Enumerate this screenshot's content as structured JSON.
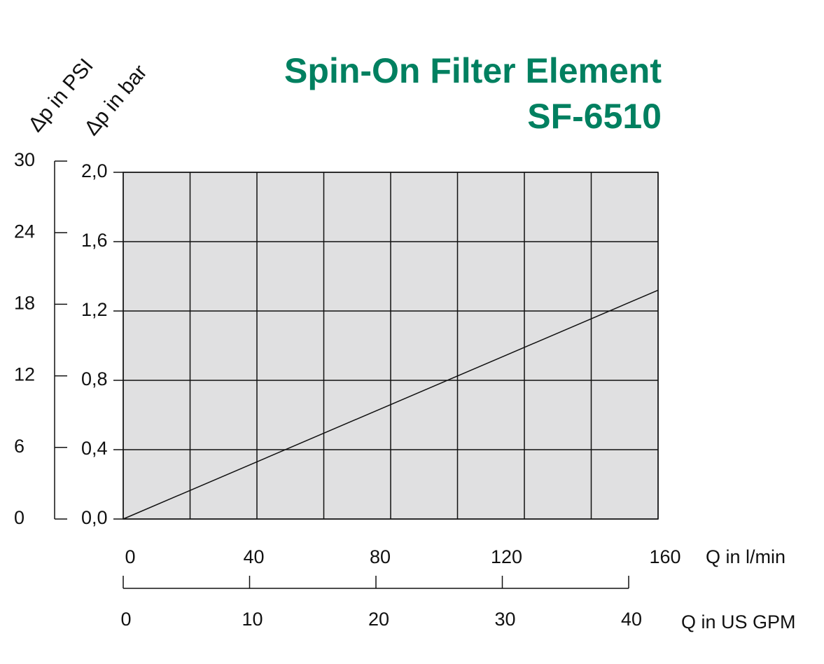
{
  "chart_data": {
    "type": "line",
    "title": "Spin-On Filter Element",
    "subtitle": "SF-6510",
    "y_label": "Δp in bar",
    "y2_label": "Δp in PSI",
    "x_label": "Q in l/min",
    "x2_label": "Q in US GPM",
    "x": [
      0,
      160
    ],
    "series": [
      {
        "name": "SF-6510",
        "color": "#111111",
        "values": [
          0,
          1.32
        ]
      }
    ],
    "xlim": [
      0,
      160
    ],
    "xticks": [
      0,
      40,
      80,
      120,
      160
    ],
    "x2lim": [
      0,
      40
    ],
    "x2ticks": [
      0,
      10,
      20,
      30,
      40
    ],
    "ylim": [
      0,
      2
    ],
    "yticks": [
      {
        "value": 0,
        "label": "0,0"
      },
      {
        "value": 0.4,
        "label": "0,4"
      },
      {
        "value": 0.8,
        "label": "0,8"
      },
      {
        "value": 1.2,
        "label": "1,2"
      },
      {
        "value": 1.6,
        "label": "1,6"
      },
      {
        "value": 2,
        "label": "2,0"
      }
    ],
    "y2lim": [
      0,
      30
    ],
    "y2ticks": [
      0,
      6,
      12,
      18,
      24,
      30
    ],
    "grid": true,
    "plot_background": "#e0e0e1"
  }
}
